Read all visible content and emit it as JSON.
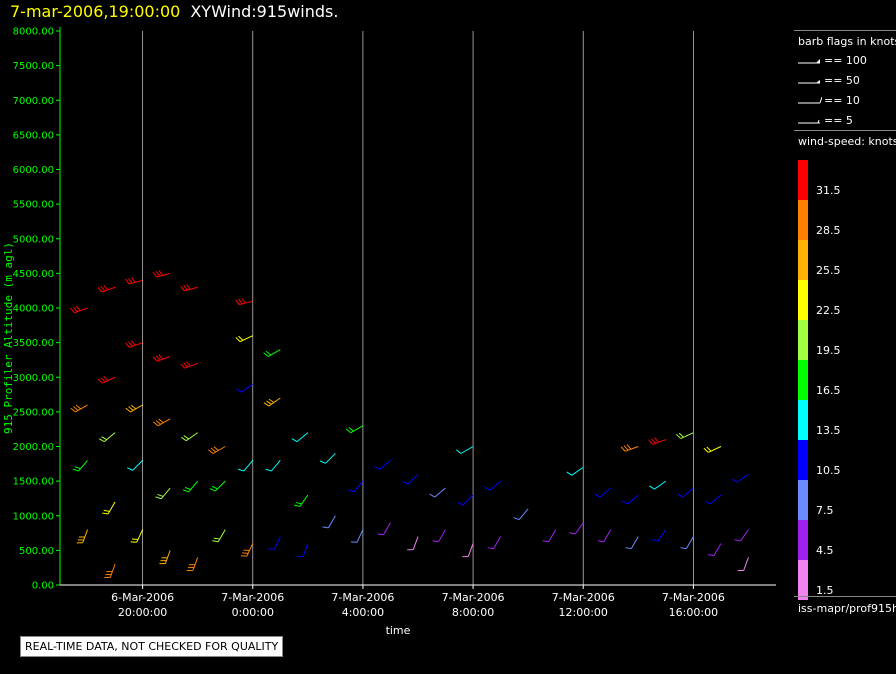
{
  "header": {
    "date_time": "7-mar-2006,19:00:00",
    "plot_name": "XYWind:915winds."
  },
  "legend": {
    "barb_header": "barb flags in knots",
    "barb_flags": [
      {
        "label": "== 100",
        "kind": "pennant"
      },
      {
        "label": "== 50",
        "kind": "pennant-half"
      },
      {
        "label": "== 10",
        "kind": "full-barb"
      },
      {
        "label": "== 5",
        "kind": "half-barb"
      }
    ],
    "speed_header": "wind-speed: knots",
    "color_scale": [
      {
        "label": "31.5",
        "color": "#ff0000"
      },
      {
        "label": "28.5",
        "color": "#ff8000"
      },
      {
        "label": "25.5",
        "color": "#ffb000"
      },
      {
        "label": "22.5",
        "color": "#ffff00"
      },
      {
        "label": "19.5",
        "color": "#a0ff40"
      },
      {
        "label": "16.5",
        "color": "#00ff00"
      },
      {
        "label": "13.5",
        "color": "#00ffff"
      },
      {
        "label": "10.5",
        "color": "#0000ff"
      },
      {
        "label": "7.5",
        "color": "#6a8cff"
      },
      {
        "label": "4.5",
        "color": "#a020f0"
      },
      {
        "label": "1.5",
        "color": "#ee82ee"
      }
    ]
  },
  "source": "iss-mapr/prof915h",
  "notice": "REAL-TIME DATA, NOT CHECKED FOR QUALITY",
  "chart_data": {
    "type": "scatter",
    "title": "XYWind:915winds.",
    "xlabel": "time",
    "ylabel": "915 Profiler Altitude (m agl)",
    "ylim": [
      0,
      8000
    ],
    "yticks": [
      "0.00",
      "500.00",
      "1000.00",
      "1500.00",
      "2000.00",
      "2500.00",
      "3000.00",
      "3500.00",
      "4000.00",
      "4500.00",
      "5000.00",
      "5500.00",
      "6000.00",
      "6500.00",
      "7000.00",
      "7500.00",
      "8000.00"
    ],
    "xlim": [
      "6-Mar-2006 17:00",
      "7-Mar-2006 19:00"
    ],
    "xticks": [
      {
        "date": "6-Mar-2006",
        "time": "20:00:00"
      },
      {
        "date": "7-Mar-2006",
        "time": "0:00:00"
      },
      {
        "date": "7-Mar-2006",
        "time": "4:00:00"
      },
      {
        "date": "7-Mar-2006",
        "time": "8:00:00"
      },
      {
        "date": "7-Mar-2006",
        "time": "12:00:00"
      },
      {
        "date": "7-Mar-2006",
        "time": "16:00:00"
      }
    ],
    "grid": "vertical",
    "series": [
      {
        "name": "wind-speed: knots",
        "points": [
          {
            "t": "6-Mar-2006 18:00",
            "alt": 4000,
            "speed": 31.5,
            "dir": 250
          },
          {
            "t": "6-Mar-2006 18:00",
            "alt": 2600,
            "speed": 28.5,
            "dir": 240
          },
          {
            "t": "6-Mar-2006 18:00",
            "alt": 1800,
            "speed": 16.5,
            "dir": 220
          },
          {
            "t": "6-Mar-2006 18:00",
            "alt": 800,
            "speed": 25.5,
            "dir": 200
          },
          {
            "t": "6-Mar-2006 19:00",
            "alt": 4300,
            "speed": 31.5,
            "dir": 250
          },
          {
            "t": "6-Mar-2006 19:00",
            "alt": 3000,
            "speed": 31.5,
            "dir": 245
          },
          {
            "t": "6-Mar-2006 19:00",
            "alt": 2200,
            "speed": 19.5,
            "dir": 230
          },
          {
            "t": "6-Mar-2006 19:00",
            "alt": 1200,
            "speed": 22.5,
            "dir": 210
          },
          {
            "t": "6-Mar-2006 19:00",
            "alt": 300,
            "speed": 28.5,
            "dir": 200
          },
          {
            "t": "6-Mar-2006 20:00",
            "alt": 4400,
            "speed": 31.5,
            "dir": 255
          },
          {
            "t": "6-Mar-2006 20:00",
            "alt": 3500,
            "speed": 31.5,
            "dir": 250
          },
          {
            "t": "6-Mar-2006 20:00",
            "alt": 2600,
            "speed": 25.5,
            "dir": 240
          },
          {
            "t": "6-Mar-2006 20:00",
            "alt": 1800,
            "speed": 13.5,
            "dir": 225
          },
          {
            "t": "6-Mar-2006 20:00",
            "alt": 800,
            "speed": 22.5,
            "dir": 205
          },
          {
            "t": "6-Mar-2006 21:00",
            "alt": 4500,
            "speed": 31.5,
            "dir": 255
          },
          {
            "t": "6-Mar-2006 21:00",
            "alt": 3300,
            "speed": 31.5,
            "dir": 250
          },
          {
            "t": "6-Mar-2006 21:00",
            "alt": 2400,
            "speed": 28.5,
            "dir": 240
          },
          {
            "t": "6-Mar-2006 21:00",
            "alt": 1400,
            "speed": 19.5,
            "dir": 220
          },
          {
            "t": "6-Mar-2006 21:00",
            "alt": 500,
            "speed": 25.5,
            "dir": 200
          },
          {
            "t": "6-Mar-2006 22:00",
            "alt": 4300,
            "speed": 31.5,
            "dir": 255
          },
          {
            "t": "6-Mar-2006 22:00",
            "alt": 3200,
            "speed": 31.5,
            "dir": 250
          },
          {
            "t": "6-Mar-2006 22:00",
            "alt": 2200,
            "speed": 19.5,
            "dir": 235
          },
          {
            "t": "6-Mar-2006 22:00",
            "alt": 1500,
            "speed": 16.5,
            "dir": 220
          },
          {
            "t": "6-Mar-2006 22:00",
            "alt": 400,
            "speed": 28.5,
            "dir": 200
          },
          {
            "t": "6-Mar-2006 23:00",
            "alt": 2000,
            "speed": 28.5,
            "dir": 240
          },
          {
            "t": "6-Mar-2006 23:00",
            "alt": 1500,
            "speed": 16.5,
            "dir": 225
          },
          {
            "t": "6-Mar-2006 23:00",
            "alt": 800,
            "speed": 19.5,
            "dir": 210
          },
          {
            "t": "7-Mar-2006 0:00",
            "alt": 4100,
            "speed": 31.5,
            "dir": 255
          },
          {
            "t": "7-Mar-2006 0:00",
            "alt": 3600,
            "speed": 22.5,
            "dir": 245
          },
          {
            "t": "7-Mar-2006 0:00",
            "alt": 2900,
            "speed": 10.5,
            "dir": 235
          },
          {
            "t": "7-Mar-2006 0:00",
            "alt": 1800,
            "speed": 13.5,
            "dir": 220
          },
          {
            "t": "7-Mar-2006 0:00",
            "alt": 600,
            "speed": 28.5,
            "dir": 205
          },
          {
            "t": "7-Mar-2006 1:00",
            "alt": 3400,
            "speed": 16.5,
            "dir": 240
          },
          {
            "t": "7-Mar-2006 1:00",
            "alt": 2700,
            "speed": 25.5,
            "dir": 235
          },
          {
            "t": "7-Mar-2006 1:00",
            "alt": 1800,
            "speed": 13.5,
            "dir": 220
          },
          {
            "t": "7-Mar-2006 1:00",
            "alt": 700,
            "speed": 10.5,
            "dir": 205
          },
          {
            "t": "7-Mar-2006 2:00",
            "alt": 2200,
            "speed": 13.5,
            "dir": 230
          },
          {
            "t": "7-Mar-2006 2:00",
            "alt": 1300,
            "speed": 16.5,
            "dir": 215
          },
          {
            "t": "7-Mar-2006 2:00",
            "alt": 600,
            "speed": 10.5,
            "dir": 200
          },
          {
            "t": "7-Mar-2006 3:00",
            "alt": 1900,
            "speed": 13.5,
            "dir": 225
          },
          {
            "t": "7-Mar-2006 3:00",
            "alt": 1000,
            "speed": 7.5,
            "dir": 210
          },
          {
            "t": "7-Mar-2006 4:00",
            "alt": 2300,
            "speed": 16.5,
            "dir": 240
          },
          {
            "t": "7-Mar-2006 4:00",
            "alt": 1500,
            "speed": 10.5,
            "dir": 220
          },
          {
            "t": "7-Mar-2006 4:00",
            "alt": 800,
            "speed": 7.5,
            "dir": 205
          },
          {
            "t": "7-Mar-2006 5:00",
            "alt": 1800,
            "speed": 10.5,
            "dir": 230
          },
          {
            "t": "7-Mar-2006 5:00",
            "alt": 900,
            "speed": 4.5,
            "dir": 210
          },
          {
            "t": "7-Mar-2006 6:00",
            "alt": 1600,
            "speed": 10.5,
            "dir": 225
          },
          {
            "t": "7-Mar-2006 6:00",
            "alt": 700,
            "speed": 1.5,
            "dir": 200
          },
          {
            "t": "7-Mar-2006 7:00",
            "alt": 1400,
            "speed": 7.5,
            "dir": 230
          },
          {
            "t": "7-Mar-2006 7:00",
            "alt": 800,
            "speed": 4.5,
            "dir": 210
          },
          {
            "t": "7-Mar-2006 8:00",
            "alt": 2000,
            "speed": 13.5,
            "dir": 240
          },
          {
            "t": "7-Mar-2006 8:00",
            "alt": 1300,
            "speed": 10.5,
            "dir": 225
          },
          {
            "t": "7-Mar-2006 8:00",
            "alt": 600,
            "speed": 1.5,
            "dir": 200
          },
          {
            "t": "7-Mar-2006 9:00",
            "alt": 1500,
            "speed": 10.5,
            "dir": 230
          },
          {
            "t": "7-Mar-2006 9:00",
            "alt": 700,
            "speed": 4.5,
            "dir": 210
          },
          {
            "t": "7-Mar-2006 10:00",
            "alt": 1100,
            "speed": 7.5,
            "dir": 220
          },
          {
            "t": "7-Mar-2006 11:00",
            "alt": 800,
            "speed": 4.5,
            "dir": 210
          },
          {
            "t": "7-Mar-2006 12:00",
            "alt": 1700,
            "speed": 13.5,
            "dir": 235
          },
          {
            "t": "7-Mar-2006 12:00",
            "alt": 900,
            "speed": 4.5,
            "dir": 215
          },
          {
            "t": "7-Mar-2006 13:00",
            "alt": 1400,
            "speed": 10.5,
            "dir": 230
          },
          {
            "t": "7-Mar-2006 13:00",
            "alt": 800,
            "speed": 4.5,
            "dir": 210
          },
          {
            "t": "7-Mar-2006 14:00",
            "alt": 2000,
            "speed": 28.5,
            "dir": 250
          },
          {
            "t": "7-Mar-2006 14:00",
            "alt": 1300,
            "speed": 10.5,
            "dir": 230
          },
          {
            "t": "7-Mar-2006 14:00",
            "alt": 700,
            "speed": 7.5,
            "dir": 210
          },
          {
            "t": "7-Mar-2006 15:00",
            "alt": 2100,
            "speed": 31.5,
            "dir": 250
          },
          {
            "t": "7-Mar-2006 15:00",
            "alt": 1500,
            "speed": 13.5,
            "dir": 235
          },
          {
            "t": "7-Mar-2006 15:00",
            "alt": 800,
            "speed": 10.5,
            "dir": 215
          },
          {
            "t": "7-Mar-2006 16:00",
            "alt": 2200,
            "speed": 19.5,
            "dir": 245
          },
          {
            "t": "7-Mar-2006 16:00",
            "alt": 1400,
            "speed": 10.5,
            "dir": 230
          },
          {
            "t": "7-Mar-2006 16:00",
            "alt": 700,
            "speed": 7.5,
            "dir": 210
          },
          {
            "t": "7-Mar-2006 17:00",
            "alt": 2000,
            "speed": 22.5,
            "dir": 245
          },
          {
            "t": "7-Mar-2006 17:00",
            "alt": 1300,
            "speed": 10.5,
            "dir": 230
          },
          {
            "t": "7-Mar-2006 17:00",
            "alt": 600,
            "speed": 4.5,
            "dir": 210
          },
          {
            "t": "7-Mar-2006 18:00",
            "alt": 1600,
            "speed": 10.5,
            "dir": 235
          },
          {
            "t": "7-Mar-2006 18:00",
            "alt": 800,
            "speed": 4.5,
            "dir": 215
          },
          {
            "t": "7-Mar-2006 18:00",
            "alt": 400,
            "speed": 1.5,
            "dir": 200
          }
        ]
      }
    ]
  }
}
